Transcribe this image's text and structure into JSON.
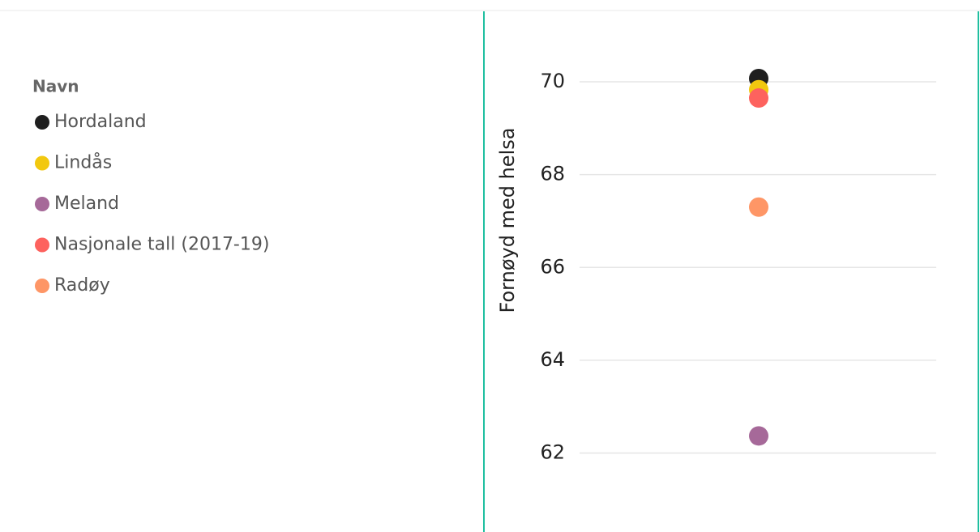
{
  "chart_data": {
    "type": "dot",
    "legend_title": "Navn",
    "ylabel": "Fornøyd med helsa",
    "categories": [
      null
    ],
    "series": [
      {
        "name": "Hordaland",
        "color": "#1f1f1f",
        "values": [
          70.07
        ]
      },
      {
        "name": "Lindås",
        "color": "#f2c80f",
        "values": [
          69.83
        ]
      },
      {
        "name": "Meland",
        "color": "#a66999",
        "values": [
          62.37
        ]
      },
      {
        "name": "Nasjonale tall (2017-19)",
        "color": "#fd625e",
        "values": [
          69.65
        ]
      },
      {
        "name": "Radøy",
        "color": "#fe9666",
        "values": [
          67.3
        ]
      }
    ],
    "ylim": [
      60.3,
      71.5
    ],
    "yticks": [
      62,
      64,
      66,
      68,
      70
    ],
    "grid": true,
    "legend": "left"
  }
}
